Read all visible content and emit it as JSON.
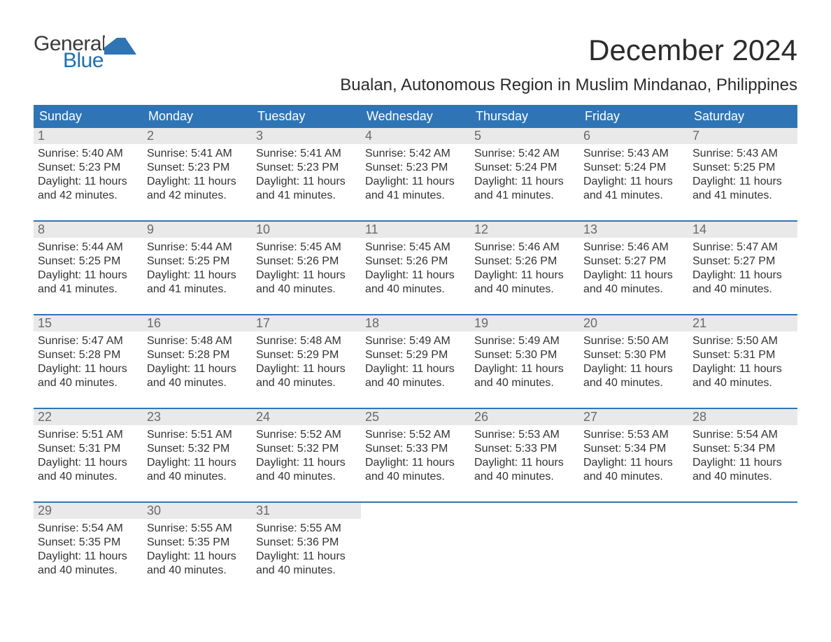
{
  "logo": {
    "word1": "General",
    "word2": "Blue",
    "flag_color": "#2f75b5"
  },
  "title": "December 2024",
  "location": "Bualan, Autonomous Region in Muslim Mindanao, Philippines",
  "colors": {
    "header_bg": "#2f75b5",
    "header_text": "#ffffff",
    "daynum_bg": "#e9e9e9",
    "daynum_text": "#6a6a6a",
    "week_border": "#2f75b5",
    "body_text": "#333333",
    "background": "#ffffff"
  },
  "day_headers": [
    "Sunday",
    "Monday",
    "Tuesday",
    "Wednesday",
    "Thursday",
    "Friday",
    "Saturday"
  ],
  "weeks": [
    [
      {
        "n": "1",
        "sr": "Sunrise: 5:40 AM",
        "ss": "Sunset: 5:23 PM",
        "d1": "Daylight: 11 hours",
        "d2": "and 42 minutes."
      },
      {
        "n": "2",
        "sr": "Sunrise: 5:41 AM",
        "ss": "Sunset: 5:23 PM",
        "d1": "Daylight: 11 hours",
        "d2": "and 42 minutes."
      },
      {
        "n": "3",
        "sr": "Sunrise: 5:41 AM",
        "ss": "Sunset: 5:23 PM",
        "d1": "Daylight: 11 hours",
        "d2": "and 41 minutes."
      },
      {
        "n": "4",
        "sr": "Sunrise: 5:42 AM",
        "ss": "Sunset: 5:23 PM",
        "d1": "Daylight: 11 hours",
        "d2": "and 41 minutes."
      },
      {
        "n": "5",
        "sr": "Sunrise: 5:42 AM",
        "ss": "Sunset: 5:24 PM",
        "d1": "Daylight: 11 hours",
        "d2": "and 41 minutes."
      },
      {
        "n": "6",
        "sr": "Sunrise: 5:43 AM",
        "ss": "Sunset: 5:24 PM",
        "d1": "Daylight: 11 hours",
        "d2": "and 41 minutes."
      },
      {
        "n": "7",
        "sr": "Sunrise: 5:43 AM",
        "ss": "Sunset: 5:25 PM",
        "d1": "Daylight: 11 hours",
        "d2": "and 41 minutes."
      }
    ],
    [
      {
        "n": "8",
        "sr": "Sunrise: 5:44 AM",
        "ss": "Sunset: 5:25 PM",
        "d1": "Daylight: 11 hours",
        "d2": "and 41 minutes."
      },
      {
        "n": "9",
        "sr": "Sunrise: 5:44 AM",
        "ss": "Sunset: 5:25 PM",
        "d1": "Daylight: 11 hours",
        "d2": "and 41 minutes."
      },
      {
        "n": "10",
        "sr": "Sunrise: 5:45 AM",
        "ss": "Sunset: 5:26 PM",
        "d1": "Daylight: 11 hours",
        "d2": "and 40 minutes."
      },
      {
        "n": "11",
        "sr": "Sunrise: 5:45 AM",
        "ss": "Sunset: 5:26 PM",
        "d1": "Daylight: 11 hours",
        "d2": "and 40 minutes."
      },
      {
        "n": "12",
        "sr": "Sunrise: 5:46 AM",
        "ss": "Sunset: 5:26 PM",
        "d1": "Daylight: 11 hours",
        "d2": "and 40 minutes."
      },
      {
        "n": "13",
        "sr": "Sunrise: 5:46 AM",
        "ss": "Sunset: 5:27 PM",
        "d1": "Daylight: 11 hours",
        "d2": "and 40 minutes."
      },
      {
        "n": "14",
        "sr": "Sunrise: 5:47 AM",
        "ss": "Sunset: 5:27 PM",
        "d1": "Daylight: 11 hours",
        "d2": "and 40 minutes."
      }
    ],
    [
      {
        "n": "15",
        "sr": "Sunrise: 5:47 AM",
        "ss": "Sunset: 5:28 PM",
        "d1": "Daylight: 11 hours",
        "d2": "and 40 minutes."
      },
      {
        "n": "16",
        "sr": "Sunrise: 5:48 AM",
        "ss": "Sunset: 5:28 PM",
        "d1": "Daylight: 11 hours",
        "d2": "and 40 minutes."
      },
      {
        "n": "17",
        "sr": "Sunrise: 5:48 AM",
        "ss": "Sunset: 5:29 PM",
        "d1": "Daylight: 11 hours",
        "d2": "and 40 minutes."
      },
      {
        "n": "18",
        "sr": "Sunrise: 5:49 AM",
        "ss": "Sunset: 5:29 PM",
        "d1": "Daylight: 11 hours",
        "d2": "and 40 minutes."
      },
      {
        "n": "19",
        "sr": "Sunrise: 5:49 AM",
        "ss": "Sunset: 5:30 PM",
        "d1": "Daylight: 11 hours",
        "d2": "and 40 minutes."
      },
      {
        "n": "20",
        "sr": "Sunrise: 5:50 AM",
        "ss": "Sunset: 5:30 PM",
        "d1": "Daylight: 11 hours",
        "d2": "and 40 minutes."
      },
      {
        "n": "21",
        "sr": "Sunrise: 5:50 AM",
        "ss": "Sunset: 5:31 PM",
        "d1": "Daylight: 11 hours",
        "d2": "and 40 minutes."
      }
    ],
    [
      {
        "n": "22",
        "sr": "Sunrise: 5:51 AM",
        "ss": "Sunset: 5:31 PM",
        "d1": "Daylight: 11 hours",
        "d2": "and 40 minutes."
      },
      {
        "n": "23",
        "sr": "Sunrise: 5:51 AM",
        "ss": "Sunset: 5:32 PM",
        "d1": "Daylight: 11 hours",
        "d2": "and 40 minutes."
      },
      {
        "n": "24",
        "sr": "Sunrise: 5:52 AM",
        "ss": "Sunset: 5:32 PM",
        "d1": "Daylight: 11 hours",
        "d2": "and 40 minutes."
      },
      {
        "n": "25",
        "sr": "Sunrise: 5:52 AM",
        "ss": "Sunset: 5:33 PM",
        "d1": "Daylight: 11 hours",
        "d2": "and 40 minutes."
      },
      {
        "n": "26",
        "sr": "Sunrise: 5:53 AM",
        "ss": "Sunset: 5:33 PM",
        "d1": "Daylight: 11 hours",
        "d2": "and 40 minutes."
      },
      {
        "n": "27",
        "sr": "Sunrise: 5:53 AM",
        "ss": "Sunset: 5:34 PM",
        "d1": "Daylight: 11 hours",
        "d2": "and 40 minutes."
      },
      {
        "n": "28",
        "sr": "Sunrise: 5:54 AM",
        "ss": "Sunset: 5:34 PM",
        "d1": "Daylight: 11 hours",
        "d2": "and 40 minutes."
      }
    ],
    [
      {
        "n": "29",
        "sr": "Sunrise: 5:54 AM",
        "ss": "Sunset: 5:35 PM",
        "d1": "Daylight: 11 hours",
        "d2": "and 40 minutes."
      },
      {
        "n": "30",
        "sr": "Sunrise: 5:55 AM",
        "ss": "Sunset: 5:35 PM",
        "d1": "Daylight: 11 hours",
        "d2": "and 40 minutes."
      },
      {
        "n": "31",
        "sr": "Sunrise: 5:55 AM",
        "ss": "Sunset: 5:36 PM",
        "d1": "Daylight: 11 hours",
        "d2": "and 40 minutes."
      },
      null,
      null,
      null,
      null
    ]
  ]
}
